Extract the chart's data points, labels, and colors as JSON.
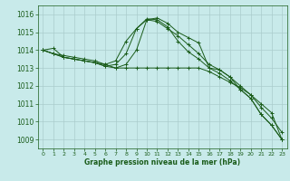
{
  "bg_color": "#c8eaea",
  "grid_color": "#aacccc",
  "line_color": "#1a5c1a",
  "marker": "+",
  "xlabel": "Graphe pression niveau de la mer (hPa)",
  "xlabel_color": "#1a5c1a",
  "tick_color": "#1a5c1a",
  "ylim": [
    1008.5,
    1016.5
  ],
  "xlim": [
    -0.5,
    23.5
  ],
  "yticks": [
    1009,
    1010,
    1011,
    1012,
    1013,
    1014,
    1015,
    1016
  ],
  "xticks": [
    0,
    1,
    2,
    3,
    4,
    5,
    6,
    7,
    8,
    9,
    10,
    11,
    12,
    13,
    14,
    15,
    16,
    17,
    18,
    19,
    20,
    21,
    22,
    23
  ],
  "lines": [
    [
      1014.0,
      1013.8,
      1013.7,
      1013.6,
      1013.5,
      1013.4,
      1013.2,
      1013.0,
      1013.2,
      1014.0,
      1015.7,
      1015.8,
      1015.5,
      1015.0,
      1014.7,
      1014.4,
      1013.0,
      1012.9,
      1012.5,
      1011.8,
      1011.3,
      1010.4,
      1009.8,
      1009.0
    ],
    [
      1014.0,
      1013.8,
      1013.6,
      1013.5,
      1013.4,
      1013.3,
      1013.1,
      1013.2,
      1013.8,
      1015.2,
      1015.75,
      1015.7,
      1015.3,
      1014.5,
      1013.9,
      1013.5,
      1013.0,
      1012.7,
      1012.3,
      1011.8,
      1011.3,
      1010.4,
      1009.8,
      1009.0
    ],
    [
      1014.0,
      1014.1,
      1013.6,
      1013.5,
      1013.4,
      1013.3,
      1013.2,
      1013.4,
      1014.5,
      1015.2,
      1015.7,
      1015.6,
      1015.2,
      1014.8,
      1014.3,
      1013.8,
      1013.2,
      1012.9,
      1012.5,
      1012.0,
      1011.5,
      1010.8,
      1010.2,
      1009.4
    ],
    [
      1014.0,
      1013.8,
      1013.6,
      1013.5,
      1013.4,
      1013.3,
      1013.1,
      1013.0,
      1013.0,
      1013.0,
      1013.0,
      1013.0,
      1013.0,
      1013.0,
      1013.0,
      1013.0,
      1012.8,
      1012.5,
      1012.2,
      1011.9,
      1011.5,
      1011.0,
      1010.5,
      1009.0
    ]
  ]
}
